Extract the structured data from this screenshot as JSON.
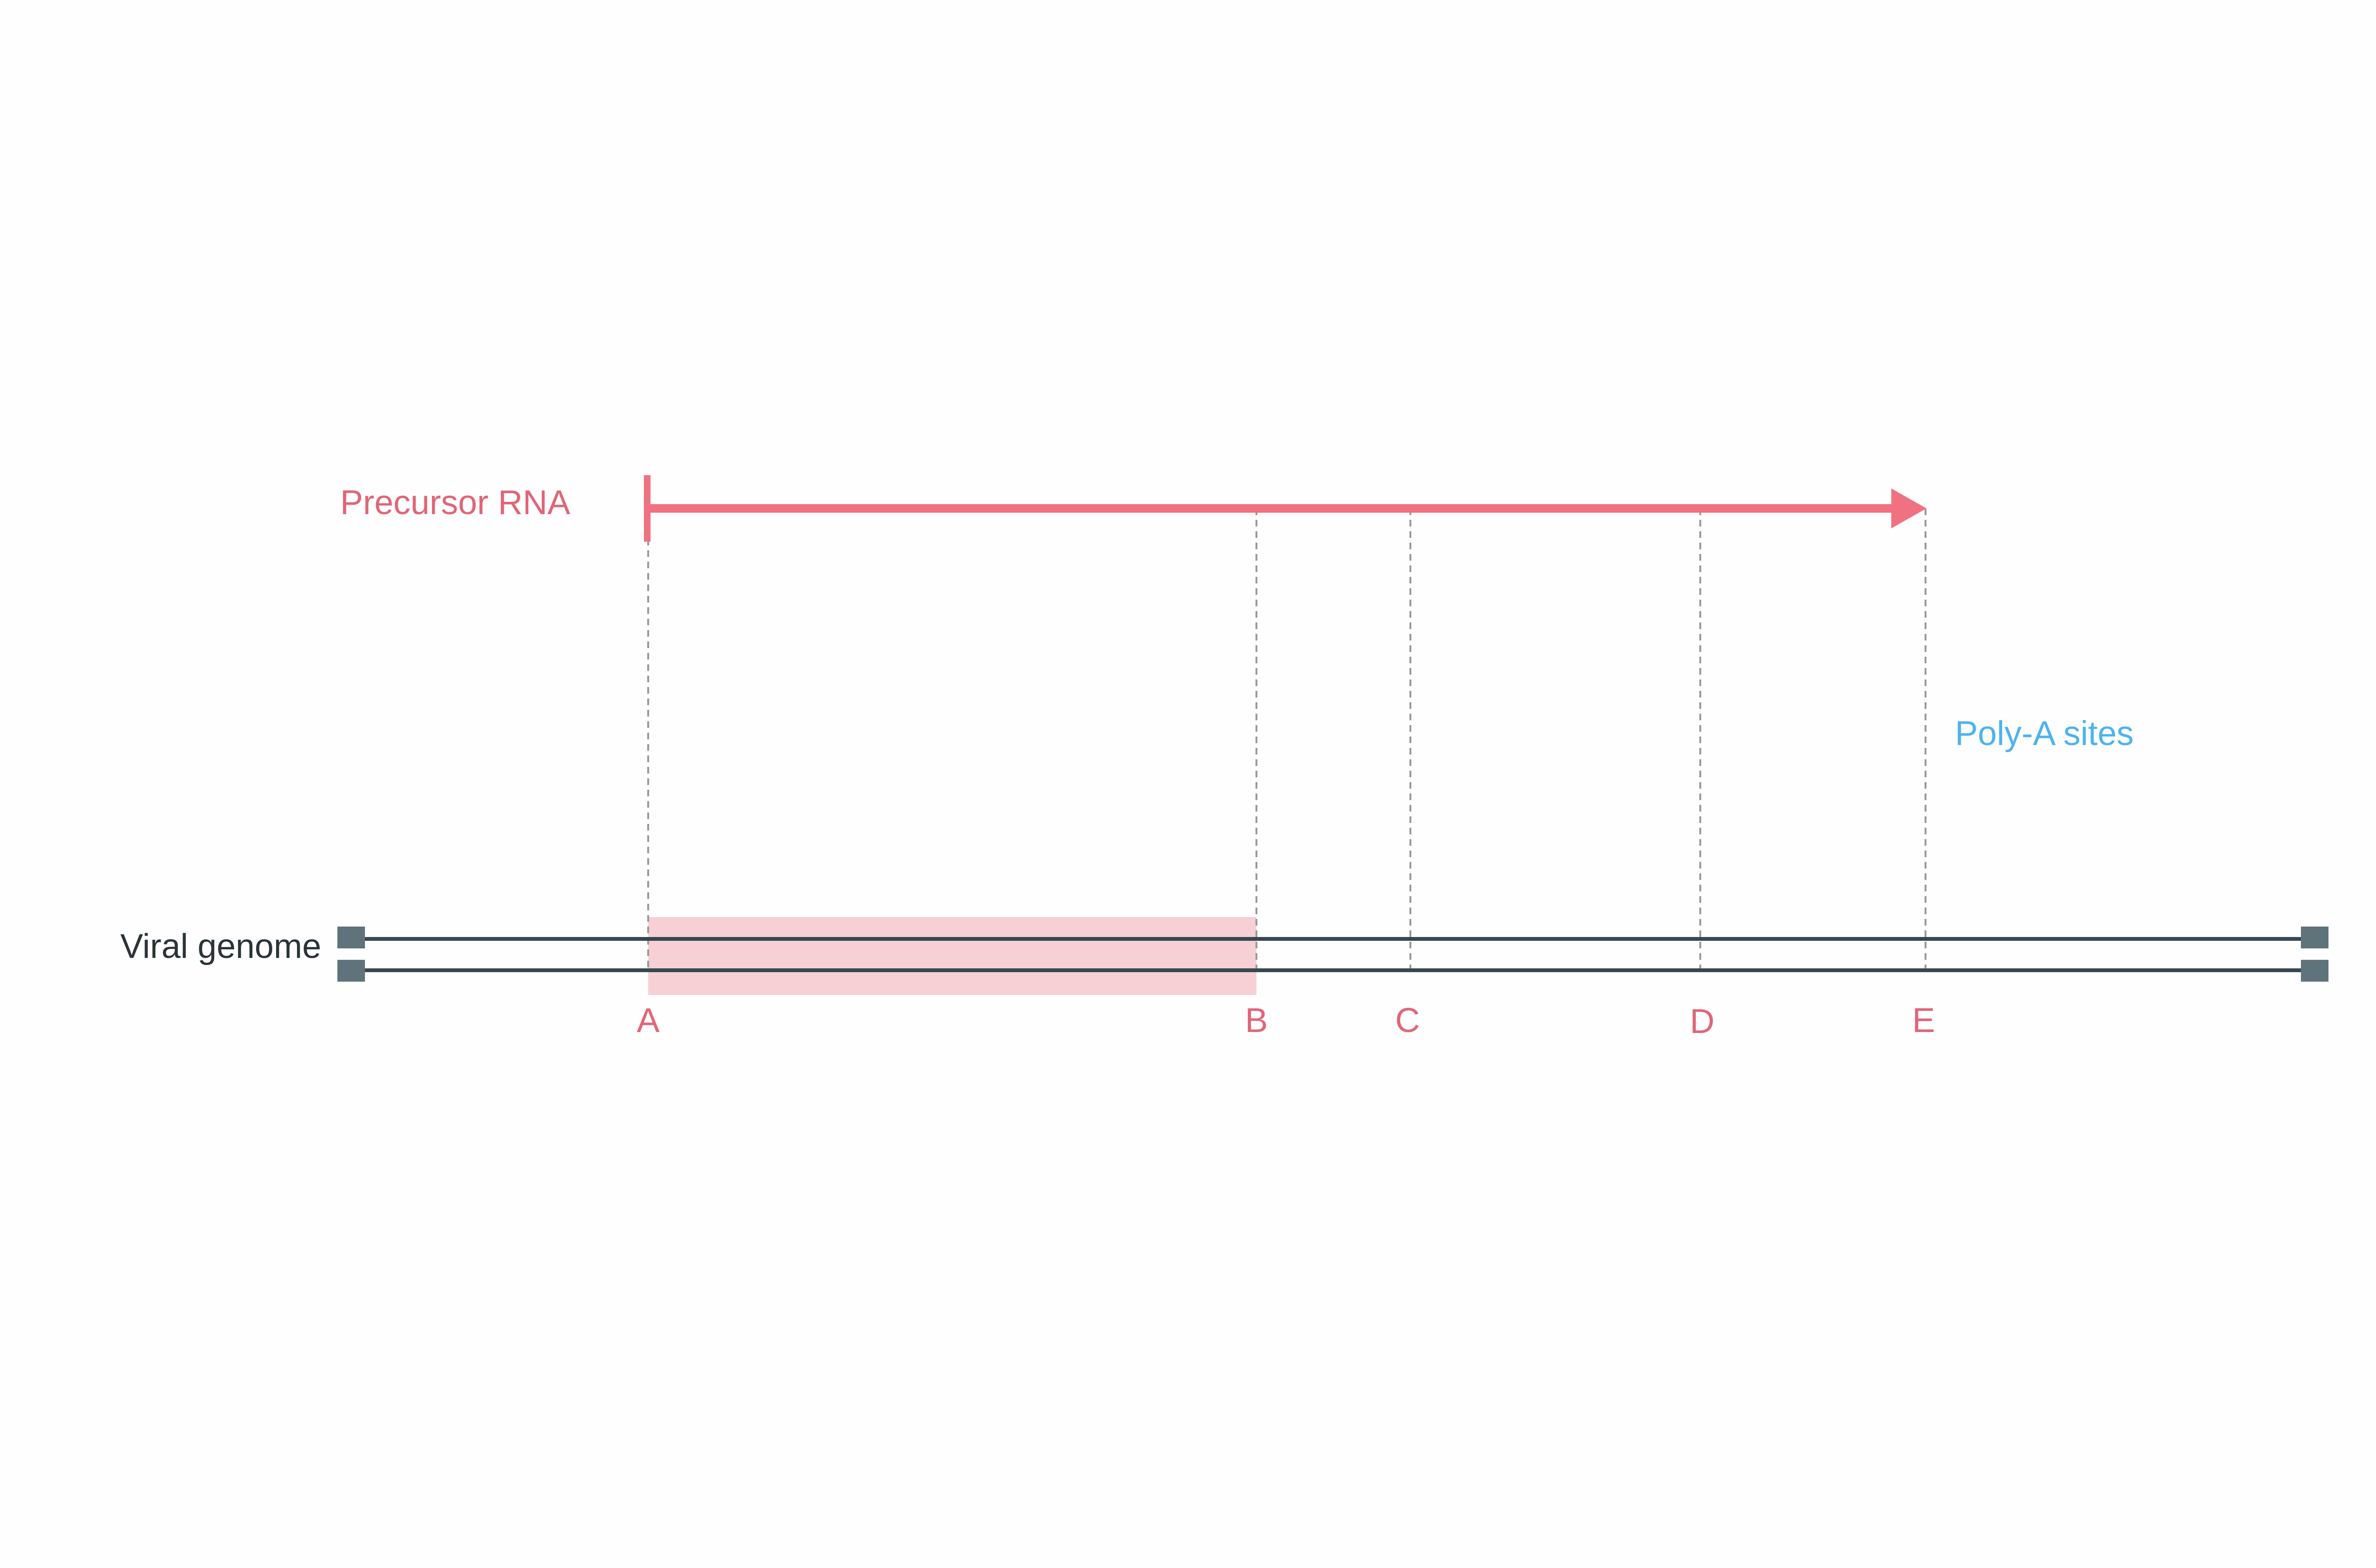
{
  "precursor_label": "Precursor RNA",
  "polya_label": "Poly-A sites",
  "genome_label": "Viral genome",
  "sites": [
    {
      "label": "A"
    },
    {
      "label": "B"
    },
    {
      "label": "C"
    },
    {
      "label": "D"
    },
    {
      "label": "E"
    }
  ],
  "colors": {
    "rna": "#f07281",
    "site_label": "#e06677",
    "polya": "#4db3f0",
    "genome_line": "#37474f",
    "genome_cap": "#5f737b",
    "highlight": "#f6d0d5",
    "guide": "#9a9a9a",
    "genome_text": "#2a3439"
  }
}
